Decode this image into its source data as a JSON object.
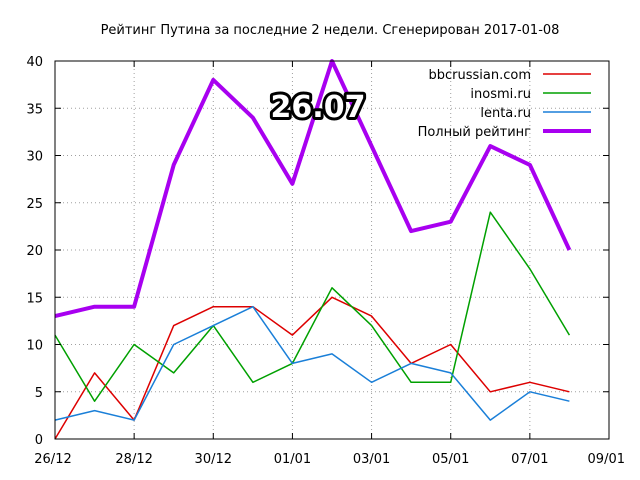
{
  "chart_data": {
    "type": "line",
    "title": "Рейтинг Путина за последние 2 недели. Сгенерирован 2017-01-08",
    "xlabel": "",
    "ylabel": "",
    "highlight_value": "26.07",
    "x_ticks": [
      "26/12",
      "28/12",
      "30/12",
      "01/01",
      "03/01",
      "05/01",
      "07/01",
      "09/01"
    ],
    "x": [
      "2016-12-26",
      "2016-12-27",
      "2016-12-28",
      "2016-12-29",
      "2016-12-30",
      "2016-12-31",
      "2017-01-01",
      "2017-01-02",
      "2017-01-03",
      "2017-01-04",
      "2017-01-05",
      "2017-01-06",
      "2017-01-07",
      "2017-01-08"
    ],
    "xlim": [
      "2016-12-26",
      "2017-01-09"
    ],
    "ylim": [
      0,
      40
    ],
    "y_ticks": [
      0,
      5,
      10,
      15,
      20,
      25,
      30,
      35,
      40
    ],
    "grid": true,
    "legend_position": "top-right",
    "series": [
      {
        "name": "bbcrussian.com",
        "color": "#dd0000",
        "width": 1.5,
        "values": [
          0,
          7,
          2,
          12,
          14,
          14,
          11,
          15,
          13,
          8,
          10,
          5,
          6,
          5
        ]
      },
      {
        "name": "inosmi.ru",
        "color": "#00a000",
        "width": 1.5,
        "values": [
          11,
          4,
          10,
          7,
          12,
          6,
          8,
          16,
          12,
          6,
          6,
          24,
          18,
          11
        ]
      },
      {
        "name": "lenta.ru",
        "color": "#1a7fd8",
        "width": 1.5,
        "values": [
          2,
          3,
          2,
          10,
          12,
          14,
          8,
          9,
          6,
          8,
          7,
          2,
          5,
          4
        ]
      },
      {
        "name": "Полный рейтинг",
        "color": "#a800f0",
        "width": 4,
        "values": [
          13,
          14,
          14,
          29,
          38,
          34,
          27,
          40,
          31,
          22,
          23,
          31,
          29,
          20
        ]
      }
    ]
  }
}
